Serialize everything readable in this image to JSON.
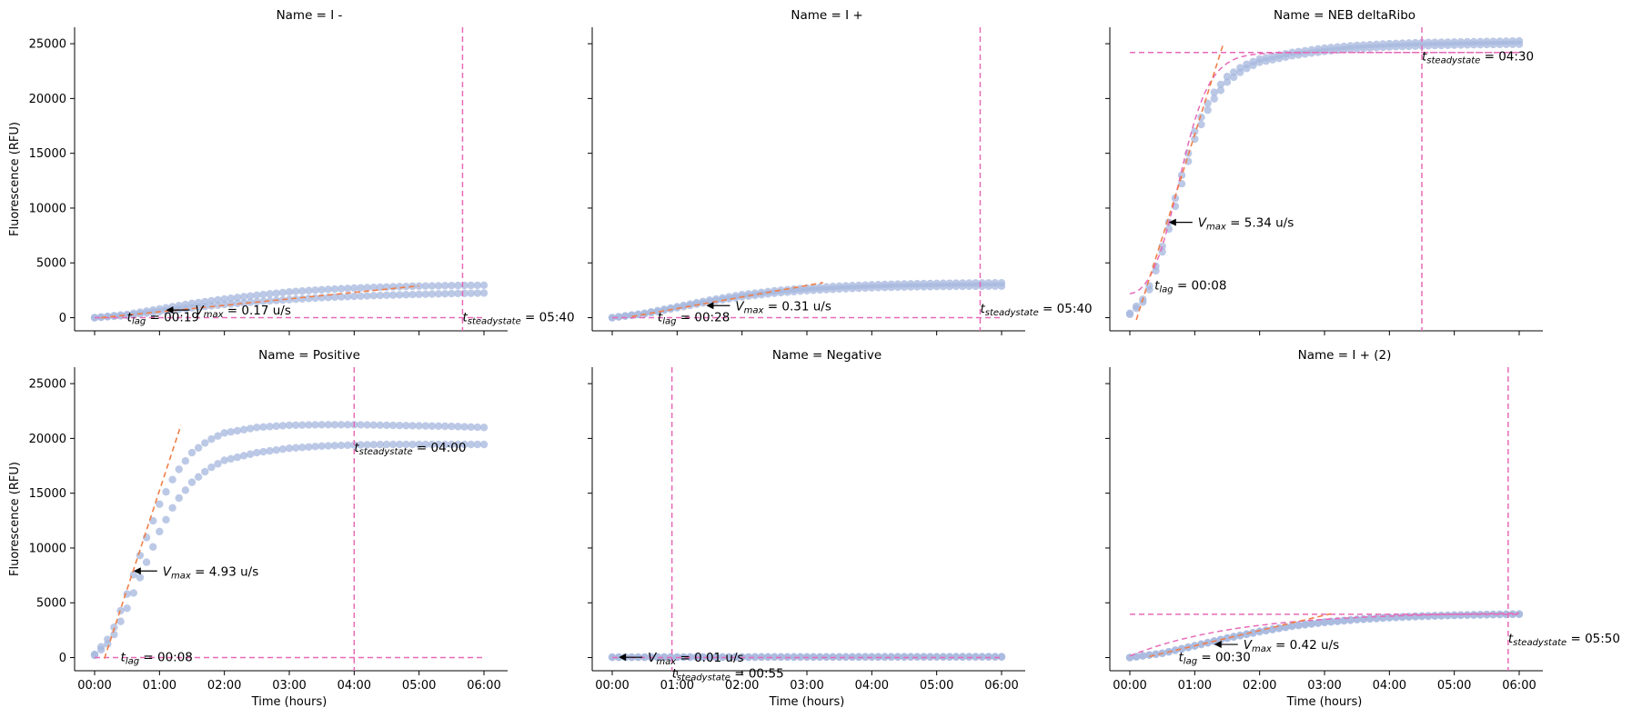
{
  "colors": {
    "points": "#a6b7de",
    "fit_line": "#f07f4b",
    "steady_line": "#e66ab8",
    "axis": "#000000"
  },
  "chart_data": {
    "type": "scatter",
    "xlabel": "Time (hours)",
    "ylabel": "Fluorescence (RFU)",
    "xlim_hours": [
      0,
      6
    ],
    "ylim": [
      -1200,
      26500
    ],
    "x_ticks": [
      "00:00",
      "01:00",
      "02:00",
      "03:00",
      "04:00",
      "05:00",
      "06:00"
    ],
    "y_ticks": [
      0,
      5000,
      10000,
      15000,
      20000,
      25000
    ],
    "grid": false,
    "panels": [
      {
        "title": "Name = I -",
        "series": [
          {
            "x": [
              0,
              0.5,
              1,
              1.5,
              2,
              2.5,
              3,
              3.5,
              4,
              4.5,
              5,
              5.5,
              6
            ],
            "y": [
              0,
              300,
              800,
              1300,
              1700,
              2050,
              2350,
              2550,
              2700,
              2800,
              2880,
              2930,
              2960
            ]
          },
          {
            "x": [
              0,
              0.5,
              1,
              1.5,
              2,
              2.5,
              3,
              3.5,
              4,
              4.5,
              5,
              5.5,
              6
            ],
            "y": [
              0,
              200,
              550,
              900,
              1200,
              1450,
              1650,
              1820,
              1950,
              2050,
              2130,
              2200,
              2250
            ]
          }
        ],
        "vmax_line": {
          "x": [
            0.1,
            5.0
          ],
          "y": [
            0,
            2900
          ]
        },
        "vmax_point": {
          "x": 1.1,
          "y": 700
        },
        "vmax_label": "0.17 u/s",
        "lag_label": "00:19",
        "lag_at": 0.5,
        "steady_h_y": 0,
        "steady_x": 5.67,
        "steady_label": "05:40",
        "steady_label_y": 0
      },
      {
        "title": "Name = I +",
        "series": [
          {
            "x": [
              0,
              0.5,
              1,
              1.5,
              2,
              2.5,
              3,
              3.5,
              4,
              4.5,
              5,
              5.5,
              6
            ],
            "y": [
              0,
              400,
              1000,
              1600,
              2100,
              2450,
              2700,
              2880,
              3000,
              3080,
              3130,
              3160,
              3180
            ]
          },
          {
            "x": [
              0,
              0.5,
              1,
              1.5,
              2,
              2.5,
              3,
              3.5,
              4,
              4.5,
              5,
              5.5,
              6
            ],
            "y": [
              0,
              350,
              900,
              1450,
              1900,
              2230,
              2470,
              2620,
              2730,
              2800,
              2840,
              2870,
              2880
            ]
          }
        ],
        "vmax_line": {
          "x": [
            0.3,
            3.25
          ],
          "y": [
            100,
            3200
          ]
        },
        "vmax_point": {
          "x": 1.45,
          "y": 1100
        },
        "vmax_label": "0.31 u/s",
        "lag_label": "00:28",
        "lag_at": 0.7,
        "steady_h_y": 0,
        "steady_x": 5.67,
        "steady_label": "05:40",
        "steady_label_y": 800
      },
      {
        "title": "Name = NEB deltaRibo",
        "series": [
          {
            "x": [
              0,
              0.25,
              0.5,
              0.75,
              1,
              1.25,
              1.5,
              1.75,
              2,
              2.5,
              3,
              3.5,
              4,
              4.5,
              5,
              5.5,
              6
            ],
            "y": [
              400,
              2000,
              6500,
              12000,
              17000,
              20200,
              22000,
              23000,
              23600,
              24200,
              24600,
              24850,
              25000,
              25100,
              25150,
              25200,
              25250
            ]
          },
          {
            "x": [
              0,
              0.25,
              0.5,
              0.75,
              1,
              1.25,
              1.5,
              1.75,
              2,
              2.5,
              3,
              3.5,
              4,
              4.5,
              5,
              5.5,
              6
            ],
            "y": [
              300,
              1700,
              6000,
              11200,
              16300,
              19600,
              21500,
              22600,
              23300,
              23900,
              24300,
              24550,
              24700,
              24800,
              24870,
              24920,
              24950
            ]
          }
        ],
        "vmax_line": {
          "x": [
            0.1,
            1.43
          ],
          "y": [
            -200,
            24800
          ]
        },
        "vmax_point": {
          "x": 0.6,
          "y": 8700
        },
        "vmax_label": "5.34 u/s",
        "lag_label": "00:08",
        "lag_at": 3000,
        "fit_curve": true,
        "steady_h_y": 24200,
        "steady_x": 4.5,
        "steady_label": "04:30",
        "steady_label_y": 23800
      },
      {
        "title": "Name = Positive",
        "series": [
          {
            "x": [
              0,
              0.25,
              0.5,
              0.75,
              1,
              1.25,
              1.5,
              1.75,
              2,
              2.5,
              3,
              3.5,
              4,
              4.5,
              5,
              5.5,
              6
            ],
            "y": [
              300,
              2000,
              5800,
              10200,
              14000,
              16800,
              18700,
              19800,
              20500,
              21000,
              21200,
              21250,
              21250,
              21200,
              21150,
              21100,
              21000
            ]
          },
          {
            "x": [
              0,
              0.25,
              0.5,
              0.75,
              1,
              1.25,
              1.5,
              1.75,
              2,
              2.5,
              3,
              3.5,
              4,
              4.5,
              5,
              5.5,
              6
            ],
            "y": [
              200,
              1500,
              4500,
              8000,
              11500,
              14200,
              16000,
              17200,
              18000,
              18700,
              19100,
              19300,
              19400,
              19450,
              19450,
              19450,
              19450
            ]
          }
        ],
        "vmax_line": {
          "x": [
            0.15,
            1.33
          ],
          "y": [
            -100,
            21200
          ]
        },
        "vmax_point": {
          "x": 0.6,
          "y": 7900
        },
        "vmax_label": "4.93 u/s",
        "lag_label": "00:08",
        "lag_at": 0.4,
        "steady_h_y": 0,
        "steady_x": 4.0,
        "steady_label": "04:00",
        "steady_label_y": 19100
      },
      {
        "title": "Name = Negative",
        "series": [
          {
            "x": [
              0,
              0.5,
              1,
              1.5,
              2,
              2.5,
              3,
              3.5,
              4,
              4.5,
              5,
              5.5,
              6
            ],
            "y": [
              50,
              50,
              60,
              60,
              60,
              70,
              70,
              70,
              80,
              80,
              80,
              90,
              90
            ]
          },
          {
            "x": [
              0,
              0.5,
              1,
              1.5,
              2,
              2.5,
              3,
              3.5,
              4,
              4.5,
              5,
              5.5,
              6
            ],
            "y": [
              20,
              20,
              30,
              30,
              30,
              40,
              40,
              40,
              40,
              50,
              50,
              50,
              50
            ]
          }
        ],
        "vmax_line": null,
        "vmax_point": {
          "x": 0.1,
          "y": 30
        },
        "vmax_label": "0.01 u/s",
        "lag_label": null,
        "steady_h_y": 0,
        "steady_x": 0.92,
        "steady_label": "00:55",
        "steady_label_y": -1500
      },
      {
        "title": "Name = I + (2)",
        "series": [
          {
            "x": [
              0,
              0.5,
              1,
              1.5,
              2,
              2.5,
              3,
              3.5,
              4,
              4.5,
              5,
              5.5,
              6
            ],
            "y": [
              0,
              400,
              1100,
              1800,
              2400,
              2900,
              3250,
              3500,
              3680,
              3800,
              3880,
              3940,
              3980
            ]
          },
          {
            "x": [
              0,
              0.5,
              1,
              1.5,
              2,
              2.5,
              3,
              3.5,
              4,
              4.5,
              5,
              5.5,
              6
            ],
            "y": [
              0,
              380,
              1050,
              1750,
              2350,
              2850,
              3200,
              3450,
              3630,
              3750,
              3840,
              3900,
              3950
            ]
          }
        ],
        "vmax_line": {
          "x": [
            0.3,
            3.1
          ],
          "y": [
            100,
            4000
          ]
        },
        "vmax_point": {
          "x": 1.3,
          "y": 1200
        },
        "vmax_label": "0.42 u/s",
        "lag_label": "00:30",
        "lag_at": 0.75,
        "fit_curve_low": true,
        "steady_h_y": 3950,
        "steady_x": 5.83,
        "steady_label": "05:50",
        "steady_label_y": 1700
      }
    ]
  }
}
